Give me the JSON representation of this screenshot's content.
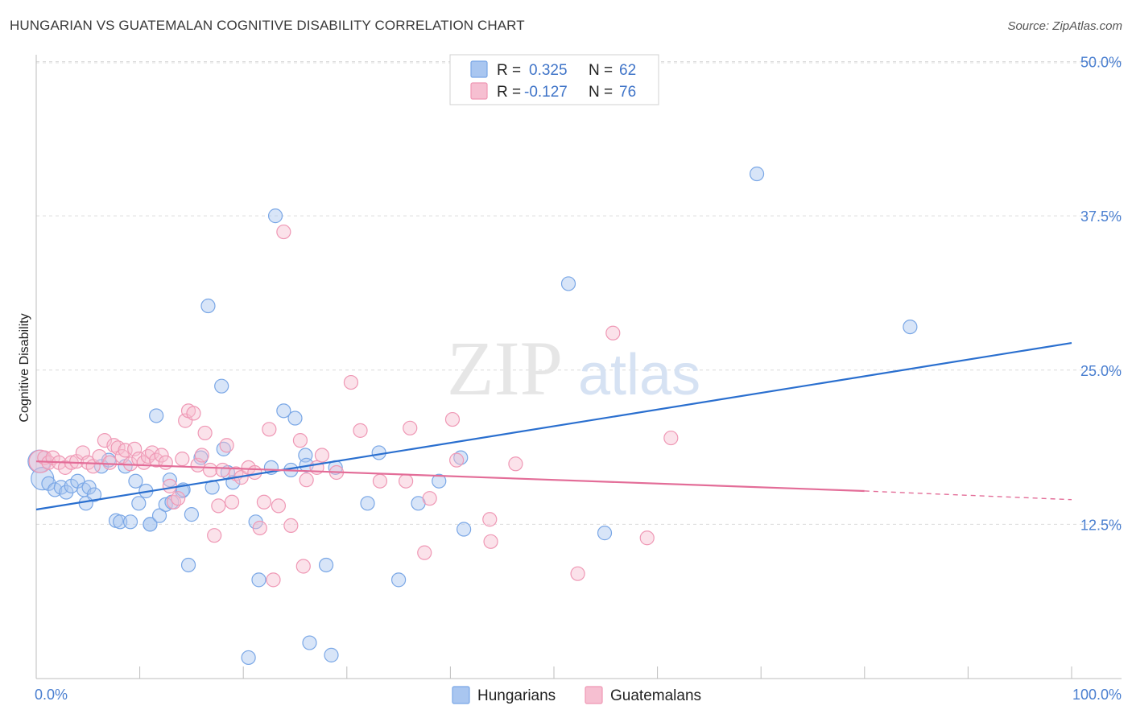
{
  "title": "HUNGARIAN VS GUATEMALAN COGNITIVE DISABILITY CORRELATION CHART",
  "source": "Source: ZipAtlas.com",
  "watermark": {
    "zip": "ZIP",
    "atlas": "atlas"
  },
  "colors": {
    "hungarian": "#7aa7e6",
    "hungarian_fill": "#a9c6f0",
    "hungarian_line": "#2a6fcf",
    "guatemalan": "#ef98b5",
    "guatemalan_fill": "#f6bfd1",
    "guatemalan_line": "#e36d98",
    "axis_label": "#4a7fd0",
    "grid": "#dcdcdc"
  },
  "legend": {
    "r_label": "R =",
    "n_label": "N =",
    "rows": [
      {
        "series": "Hungarians",
        "r": "0.325",
        "n": "62"
      },
      {
        "series": "Guatemalans",
        "r": "-0.127",
        "n": "76"
      }
    ]
  },
  "chart_data": {
    "type": "scatter",
    "title": "HUNGARIAN VS GUATEMALAN COGNITIVE DISABILITY CORRELATION CHART",
    "xlabel": "",
    "ylabel": "Cognitive Disability",
    "xlim": [
      0,
      100
    ],
    "ylim": [
      0,
      52
    ],
    "x_tick_labels": [
      "0.0%",
      "100.0%"
    ],
    "y_ticks": [
      12.5,
      25.0,
      37.5,
      50.0
    ],
    "y_tick_labels": [
      "12.5%",
      "25.0%",
      "37.5%",
      "50.0%"
    ],
    "grid": "horizontal dashed",
    "legend_placement": "top-center",
    "series": [
      {
        "name": "Hungarians",
        "trend": {
          "x": [
            0,
            100
          ],
          "y": [
            13.7,
            27.2
          ]
        },
        "points": [
          [
            0.3,
            17.6,
            "L"
          ],
          [
            0.6,
            16.2,
            "L"
          ],
          [
            1.2,
            15.8
          ],
          [
            1.8,
            15.3
          ],
          [
            2.4,
            15.5
          ],
          [
            2.9,
            15.1
          ],
          [
            3.4,
            15.6
          ],
          [
            4.0,
            16.0
          ],
          [
            4.6,
            15.3
          ],
          [
            5.1,
            15.5
          ],
          [
            5.6,
            14.9
          ],
          [
            4.8,
            14.2
          ],
          [
            6.3,
            17.2
          ],
          [
            7.0,
            17.7
          ],
          [
            7.7,
            12.8
          ],
          [
            8.1,
            12.7
          ],
          [
            8.6,
            17.2
          ],
          [
            9.1,
            12.7
          ],
          [
            9.6,
            16.0
          ],
          [
            9.9,
            14.2
          ],
          [
            10.6,
            15.2
          ],
          [
            11.0,
            12.5
          ],
          [
            11.0,
            12.5
          ],
          [
            11.6,
            21.3
          ],
          [
            11.9,
            13.2
          ],
          [
            12.5,
            14.1
          ],
          [
            12.9,
            16.1
          ],
          [
            13.1,
            14.3
          ],
          [
            14.1,
            15.2
          ],
          [
            14.2,
            15.3
          ],
          [
            14.7,
            9.2
          ],
          [
            15.0,
            13.3
          ],
          [
            15.9,
            17.9
          ],
          [
            16.6,
            30.2
          ],
          [
            17.0,
            15.5
          ],
          [
            17.9,
            23.7
          ],
          [
            18.1,
            18.6
          ],
          [
            18.5,
            16.7
          ],
          [
            19.0,
            15.9
          ],
          [
            20.5,
            1.7
          ],
          [
            21.2,
            12.7
          ],
          [
            21.5,
            8.0
          ],
          [
            22.7,
            17.1
          ],
          [
            23.1,
            37.5
          ],
          [
            23.9,
            21.7
          ],
          [
            24.6,
            16.9
          ],
          [
            25.0,
            21.1
          ],
          [
            26.0,
            18.1
          ],
          [
            26.1,
            17.3
          ],
          [
            26.4,
            2.9
          ],
          [
            28.0,
            9.2
          ],
          [
            28.5,
            1.9
          ],
          [
            28.9,
            17.1
          ],
          [
            32.0,
            14.2
          ],
          [
            33.1,
            18.3
          ],
          [
            35.0,
            8.0
          ],
          [
            36.9,
            14.2
          ],
          [
            38.9,
            16.0
          ],
          [
            41.0,
            17.9
          ],
          [
            41.3,
            12.1
          ],
          [
            51.4,
            32.0
          ],
          [
            54.9,
            11.8
          ],
          [
            69.6,
            40.9
          ],
          [
            84.4,
            28.5
          ]
        ]
      },
      {
        "name": "Guatemalans",
        "trend_solid": {
          "x": [
            0,
            80
          ],
          "y": [
            17.6,
            15.2
          ]
        },
        "trend_dashed": {
          "x": [
            80,
            100
          ],
          "y": [
            15.2,
            14.5
          ]
        },
        "points": [
          [
            0.4,
            17.6,
            "L"
          ],
          [
            0.8,
            17.9
          ],
          [
            1.2,
            17.5
          ],
          [
            1.6,
            17.9
          ],
          [
            2.2,
            17.5
          ],
          [
            2.8,
            17.1
          ],
          [
            3.4,
            17.5
          ],
          [
            3.9,
            17.6
          ],
          [
            4.5,
            18.3
          ],
          [
            5.0,
            17.5
          ],
          [
            5.5,
            17.2
          ],
          [
            6.1,
            18.0
          ],
          [
            6.6,
            19.3
          ],
          [
            7.1,
            17.5
          ],
          [
            7.5,
            18.9
          ],
          [
            7.9,
            18.7
          ],
          [
            8.3,
            18.0
          ],
          [
            8.6,
            18.5
          ],
          [
            9.1,
            17.4
          ],
          [
            9.5,
            18.6
          ],
          [
            9.9,
            17.8
          ],
          [
            10.4,
            17.5
          ],
          [
            10.8,
            18.0
          ],
          [
            11.2,
            18.3
          ],
          [
            11.6,
            17.7
          ],
          [
            12.1,
            18.1
          ],
          [
            12.5,
            17.5
          ],
          [
            12.9,
            15.6
          ],
          [
            13.3,
            14.3
          ],
          [
            13.7,
            14.6
          ],
          [
            14.1,
            17.8
          ],
          [
            14.4,
            20.9
          ],
          [
            14.7,
            21.7
          ],
          [
            15.2,
            21.5
          ],
          [
            15.6,
            17.3
          ],
          [
            16.0,
            18.1
          ],
          [
            16.3,
            19.9
          ],
          [
            16.8,
            16.9
          ],
          [
            17.2,
            11.6
          ],
          [
            17.6,
            14.0
          ],
          [
            18.0,
            16.9
          ],
          [
            18.4,
            18.9
          ],
          [
            18.9,
            14.3
          ],
          [
            19.3,
            16.6
          ],
          [
            19.8,
            16.3
          ],
          [
            20.5,
            17.1
          ],
          [
            21.1,
            16.7
          ],
          [
            21.6,
            12.2
          ],
          [
            22.0,
            14.3
          ],
          [
            22.5,
            20.2
          ],
          [
            22.9,
            8.0
          ],
          [
            23.4,
            14.0
          ],
          [
            23.9,
            36.2
          ],
          [
            24.6,
            12.4
          ],
          [
            25.5,
            19.3
          ],
          [
            25.8,
            9.1
          ],
          [
            26.1,
            16.1
          ],
          [
            27.1,
            17.1
          ],
          [
            27.6,
            18.1
          ],
          [
            29.0,
            16.7
          ],
          [
            30.4,
            24.0
          ],
          [
            31.3,
            20.1
          ],
          [
            33.2,
            16.0
          ],
          [
            35.7,
            16.0
          ],
          [
            36.1,
            20.3
          ],
          [
            37.5,
            10.2
          ],
          [
            38.0,
            14.6
          ],
          [
            40.2,
            21.0
          ],
          [
            40.6,
            17.7
          ],
          [
            43.8,
            12.9
          ],
          [
            43.9,
            11.1
          ],
          [
            46.3,
            17.4
          ],
          [
            52.3,
            8.5
          ],
          [
            55.7,
            28.0
          ],
          [
            59.0,
            11.4
          ],
          [
            61.3,
            19.5
          ]
        ]
      }
    ]
  }
}
